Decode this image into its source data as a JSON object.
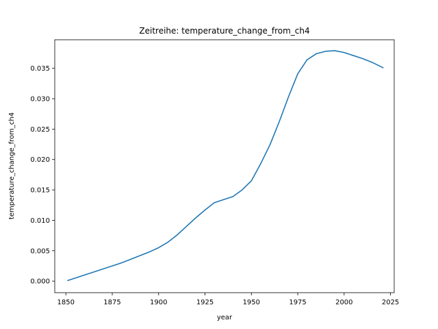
{
  "chart_data": {
    "type": "line",
    "title": "Zeitreihe: temperature_change_from_ch4",
    "xlabel": "year",
    "ylabel": "temperature_change_from_ch4",
    "xlim": [
      1844,
      2027
    ],
    "ylim": [
      -0.0019,
      0.0397
    ],
    "xticks": [
      1850,
      1875,
      1900,
      1925,
      1950,
      1975,
      2000,
      2025
    ],
    "xtick_labels": [
      "1850",
      "1875",
      "1900",
      "1925",
      "1950",
      "1975",
      "2000",
      "2025"
    ],
    "yticks": [
      0.0,
      0.005,
      0.01,
      0.015,
      0.02,
      0.025,
      0.03,
      0.035
    ],
    "ytick_labels": [
      "0.000",
      "0.005",
      "0.010",
      "0.015",
      "0.020",
      "0.025",
      "0.030",
      "0.035"
    ],
    "grid": false,
    "series": [
      {
        "color": "#1f77b4",
        "x": [
          1851,
          1855,
          1860,
          1865,
          1870,
          1875,
          1880,
          1885,
          1890,
          1895,
          1900,
          1905,
          1910,
          1915,
          1920,
          1925,
          1930,
          1935,
          1940,
          1945,
          1950,
          1955,
          1960,
          1965,
          1970,
          1975,
          1980,
          1985,
          1990,
          1995,
          2000,
          2005,
          2010,
          2015,
          2021
        ],
        "y": [
          0.0001,
          0.0005,
          0.001,
          0.0015,
          0.002,
          0.0025,
          0.003,
          0.0036,
          0.0042,
          0.0048,
          0.0055,
          0.0064,
          0.0076,
          0.009,
          0.0104,
          0.0117,
          0.0129,
          0.0134,
          0.0139,
          0.015,
          0.0165,
          0.0193,
          0.0224,
          0.0262,
          0.0303,
          0.0341,
          0.0364,
          0.0374,
          0.0378,
          0.0379,
          0.0376,
          0.0371,
          0.0366,
          0.036,
          0.0351
        ]
      }
    ]
  }
}
